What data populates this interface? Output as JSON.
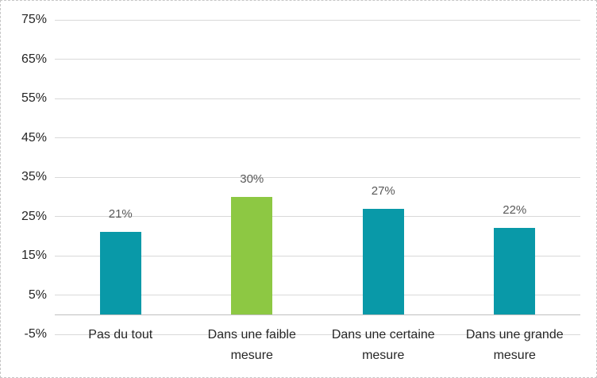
{
  "chart_data": {
    "type": "bar",
    "title": "",
    "xlabel": "",
    "ylabel": "",
    "categories": [
      "Pas du tout",
      "Dans une faible mesure",
      "Dans une certaine mesure",
      "Dans une grande mesure"
    ],
    "values": [
      21,
      30,
      27,
      22
    ],
    "data_labels": [
      "21%",
      "30%",
      "27%",
      "22%"
    ],
    "bar_colors": [
      "#0999A8",
      "#8DC843",
      "#0999A8",
      "#0999A8"
    ],
    "ylim": [
      -5,
      75
    ],
    "ytick_step": 10,
    "ytick_values": [
      75,
      65,
      55,
      45,
      35,
      25,
      15,
      5,
      -5
    ],
    "ytick_labels": [
      "75%",
      "65%",
      "55%",
      "45%",
      "35%",
      "25%",
      "15%",
      "5%",
      "-5%"
    ],
    "grid": true,
    "legend": false
  },
  "colors": {
    "teal": "#0999A8",
    "green": "#8DC843",
    "gridline": "#D9D9D9",
    "axis_line": "#BFBFBF",
    "tick_label": "#262626",
    "data_label": "#595959",
    "background": "#FFFFFF",
    "frame_border": "#C6C6C6"
  }
}
